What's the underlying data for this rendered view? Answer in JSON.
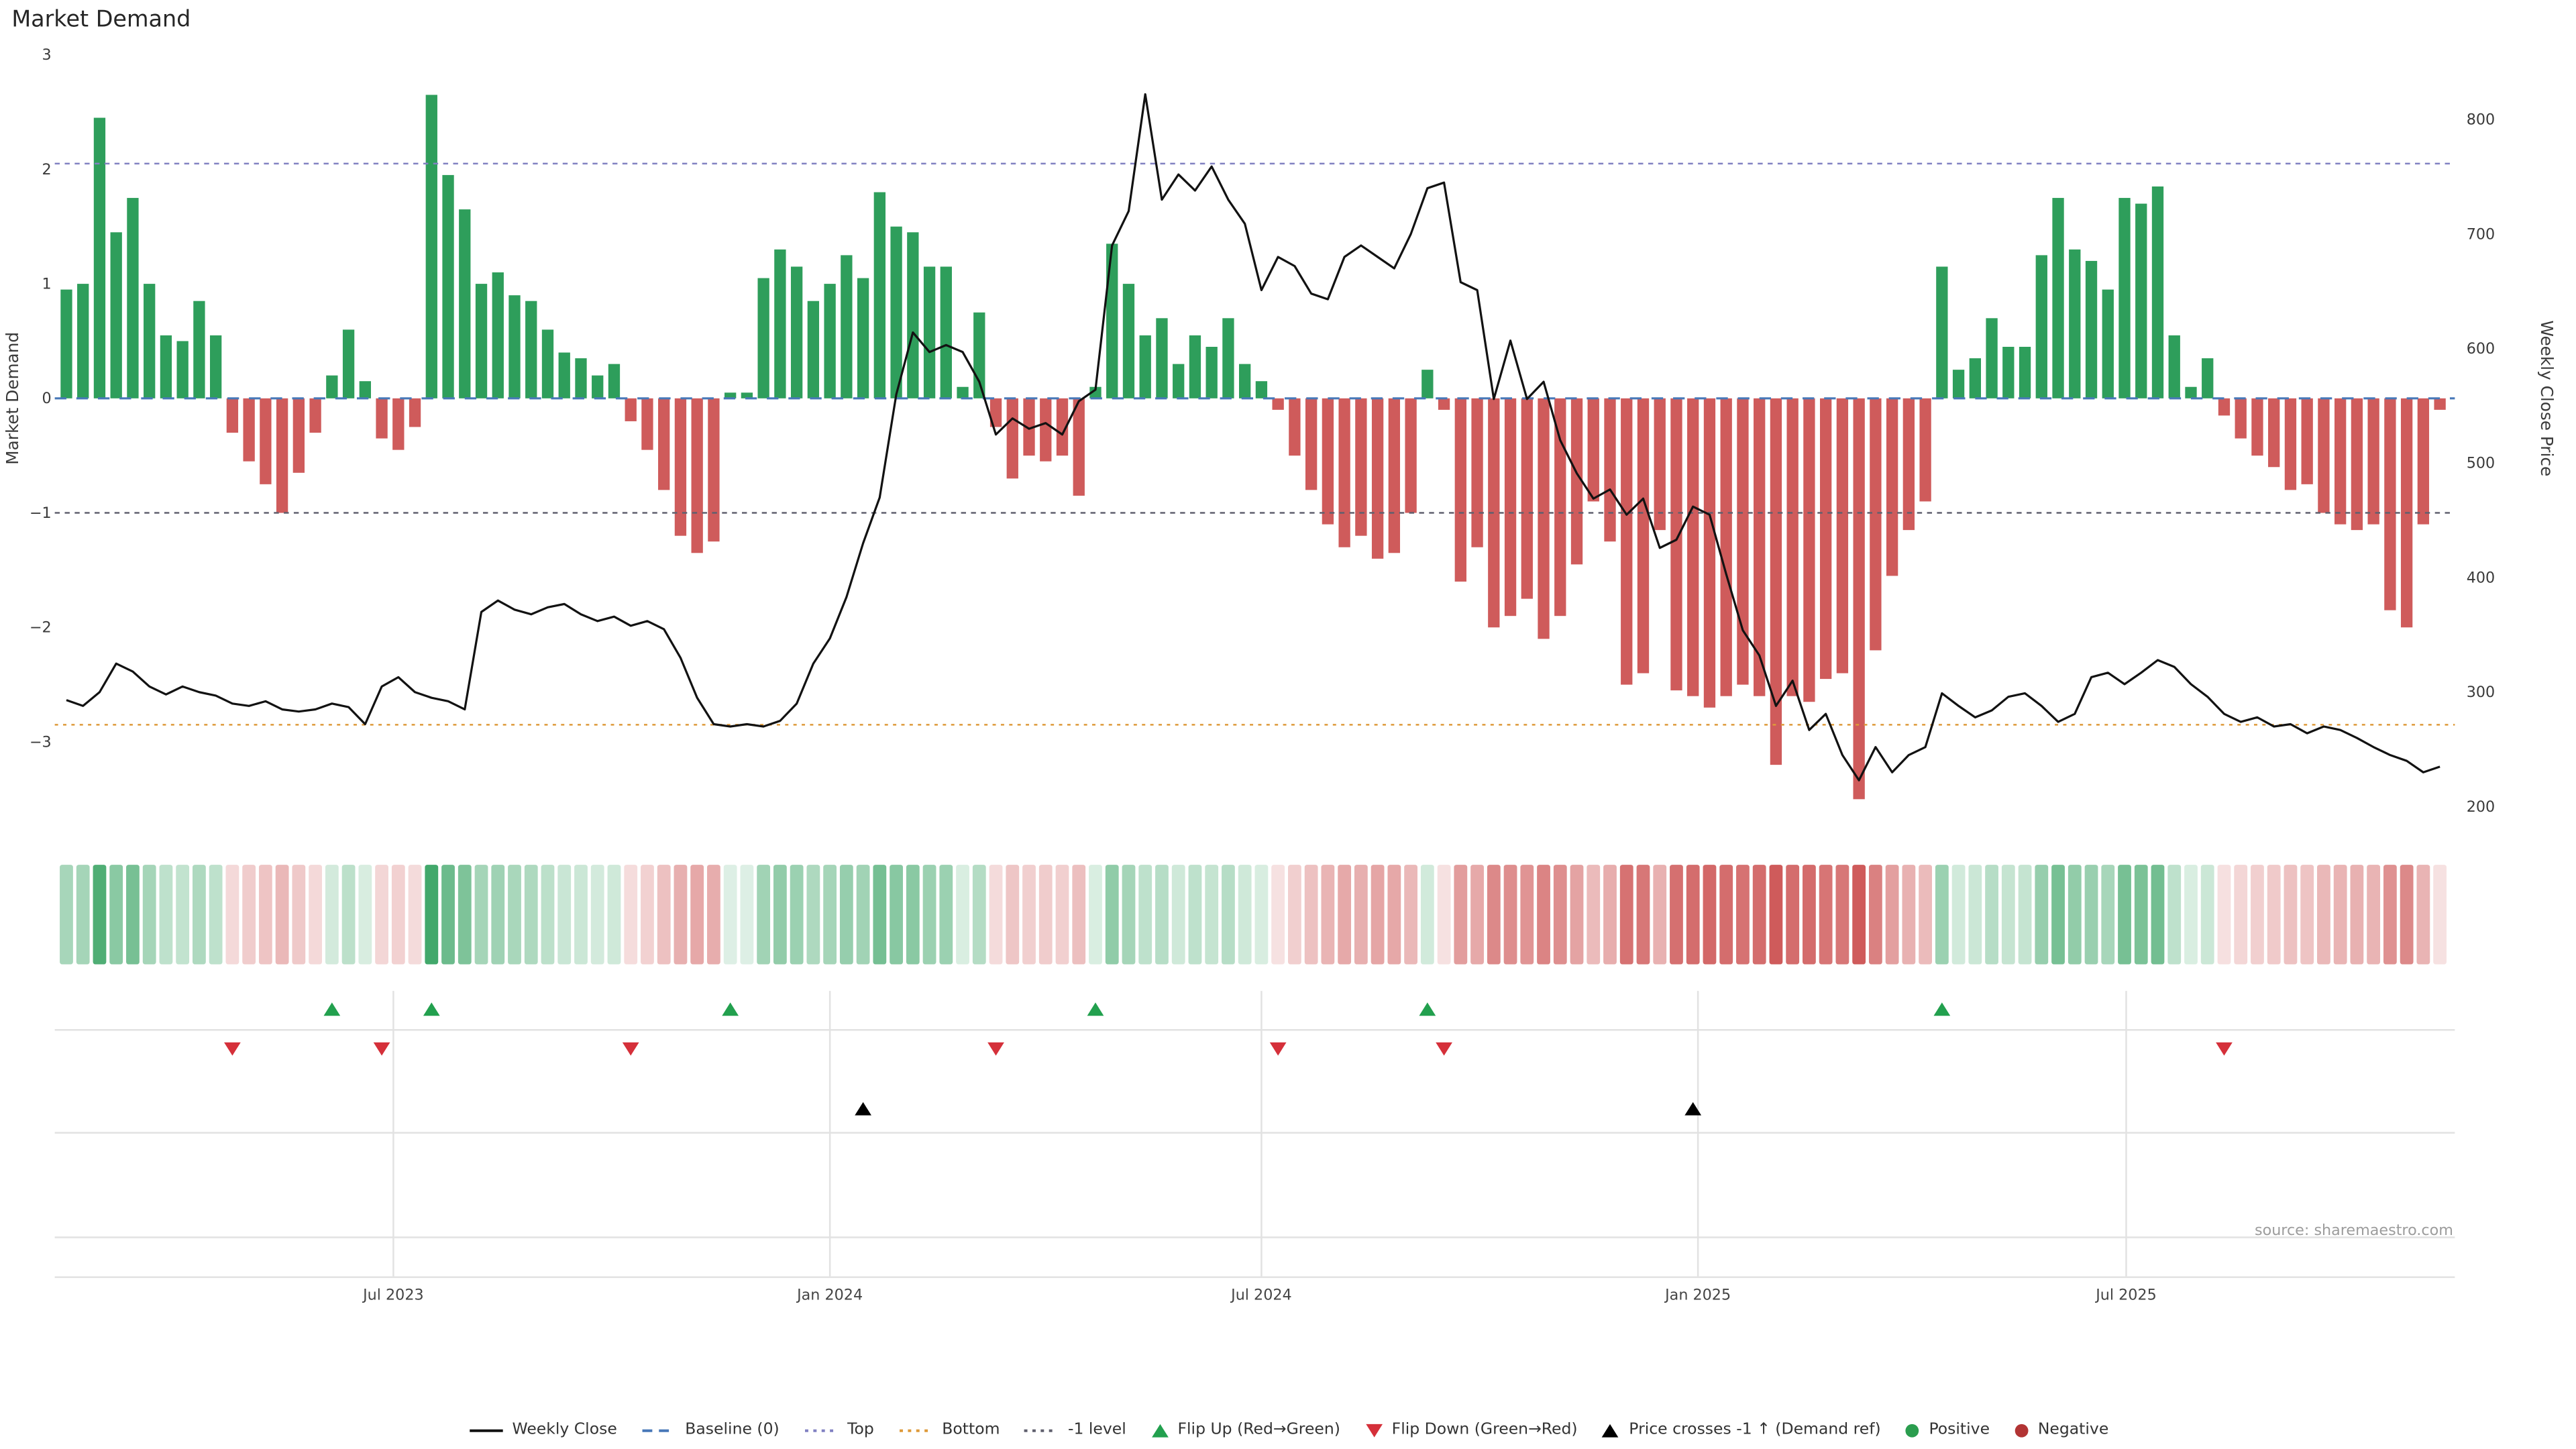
{
  "title": "Market Demand",
  "source": "source: sharemaestro.com",
  "axes": {
    "left_label": "Market Demand",
    "right_label": "Weekly Close Price",
    "left_ticks": [
      3,
      2,
      1,
      0,
      -1,
      -2,
      -3
    ],
    "right_ticks": [
      800,
      700,
      600,
      500,
      400,
      300,
      200
    ],
    "x_ticks": [
      {
        "label": "Jul 2023",
        "week": 19.7
      },
      {
        "label": "Jan 2024",
        "week": 46.0
      },
      {
        "label": "Jul 2024",
        "week": 72.0
      },
      {
        "label": "Jan 2025",
        "week": 98.3
      },
      {
        "label": "Jul 2025",
        "week": 124.1
      }
    ]
  },
  "colors": {
    "positive": "#2e9e5b",
    "negative": "#cf5b5b",
    "price_line": "#121212",
    "baseline": "#4878b8",
    "top_line": "#8181c2",
    "bottom_line": "#de9a3a",
    "minus_one_line": "#60606e",
    "flip_up": "#22a04e",
    "flip_down": "#d5303a",
    "price_cross": "#000000",
    "grid": "#e2e2e2"
  },
  "legend": [
    {
      "name": "weekly-close",
      "label": "Weekly Close",
      "icon": "line",
      "color": "#121212"
    },
    {
      "name": "baseline",
      "label": "Baseline (0)",
      "icon": "dash",
      "color": "#4878b8"
    },
    {
      "name": "top",
      "label": "Top",
      "icon": "dot",
      "color": "#8181c2"
    },
    {
      "name": "bottom",
      "label": "Bottom",
      "icon": "dot",
      "color": "#de9a3a"
    },
    {
      "name": "minus-1-level",
      "label": "-1 level",
      "icon": "dot",
      "color": "#60606e"
    },
    {
      "name": "flip-up",
      "label": "Flip Up (Red→Green)",
      "icon": "tri-up",
      "color": "#22a04e"
    },
    {
      "name": "flip-down",
      "label": "Flip Down (Green→Red)",
      "icon": "tri-down",
      "color": "#d5303a"
    },
    {
      "name": "price-crosses-minus-1",
      "label": "Price crosses -1 ↑ (Demand ref)",
      "icon": "tri-up",
      "color": "#000000"
    },
    {
      "name": "positive",
      "label": "Positive",
      "icon": "circle",
      "color": "#2a9d4e"
    },
    {
      "name": "negative",
      "label": "Negative",
      "icon": "circle",
      "color": "#b23434"
    }
  ],
  "chart_data": {
    "type": "combo",
    "subtypes": [
      "bar",
      "line",
      "heatmap-strip",
      "event-markers"
    ],
    "title": "Market Demand",
    "x_start": "2023-02-13",
    "x_interval_days": 7,
    "n_points": 144,
    "left_axis": {
      "label": "Market Demand",
      "ticks": [
        3,
        2,
        1,
        0,
        -1,
        -2,
        -3
      ],
      "lim": [
        -3.6,
        3.05
      ]
    },
    "right_axis": {
      "label": "Weekly Close Price",
      "ticks": [
        800,
        700,
        600,
        500,
        400,
        300,
        200
      ],
      "lim": [
        195,
        830
      ]
    },
    "reference_lines": {
      "baseline": 0,
      "top": 2.05,
      "bottom": -2.85,
      "minus_one": -1
    },
    "grid": false,
    "legend_position": "bottom-center",
    "series": [
      {
        "name": "Market Demand",
        "type": "bar",
        "axis": "left",
        "values": [
          0.95,
          1.0,
          2.45,
          1.45,
          1.75,
          1.0,
          0.55,
          0.5,
          0.85,
          0.55,
          -0.3,
          -0.55,
          -0.75,
          -1.0,
          -0.65,
          -0.3,
          0.2,
          0.6,
          0.15,
          -0.35,
          -0.45,
          -0.25,
          2.65,
          1.95,
          1.65,
          1.0,
          1.1,
          0.9,
          0.85,
          0.6,
          0.4,
          0.35,
          0.2,
          0.3,
          -0.2,
          -0.45,
          -0.8,
          -1.2,
          -1.35,
          -1.25,
          0.05,
          0.05,
          1.05,
          1.3,
          1.15,
          0.85,
          1.0,
          1.25,
          1.05,
          1.8,
          1.5,
          1.45,
          1.15,
          1.15,
          0.1,
          0.75,
          -0.25,
          -0.7,
          -0.5,
          -0.55,
          -0.5,
          -0.85,
          0.1,
          1.35,
          1.0,
          0.55,
          0.7,
          0.3,
          0.55,
          0.45,
          0.7,
          0.3,
          0.15,
          -0.1,
          -0.5,
          -0.8,
          -1.1,
          -1.3,
          -1.2,
          -1.4,
          -1.35,
          -1.0,
          0.25,
          -0.1,
          -1.6,
          -1.3,
          -2.0,
          -1.9,
          -1.75,
          -2.1,
          -1.9,
          -1.45,
          -0.9,
          -1.25,
          -2.5,
          -2.4,
          -1.15,
          -2.55,
          -2.6,
          -2.7,
          -2.6,
          -2.5,
          -2.6,
          -3.2,
          -2.6,
          -2.65,
          -2.45,
          -2.4,
          -3.5,
          -2.2,
          -1.55,
          -1.15,
          -0.9,
          1.15,
          0.25,
          0.35,
          0.7,
          0.45,
          0.45,
          1.25,
          1.75,
          1.3,
          1.2,
          0.95,
          1.75,
          1.7,
          1.85,
          0.55,
          0.1,
          0.35,
          -0.15,
          -0.35,
          -0.5,
          -0.6,
          -0.8,
          -0.75,
          -1.0,
          -1.1,
          -1.15,
          -1.1,
          -1.85,
          -2.0,
          -1.1,
          -0.1
        ]
      },
      {
        "name": "Weekly Close",
        "type": "line",
        "axis": "right",
        "values": [
          293,
          288,
          300,
          325,
          318,
          305,
          298,
          305,
          300,
          297,
          290,
          288,
          292,
          285,
          283,
          285,
          290,
          287,
          272,
          305,
          313,
          300,
          295,
          292,
          285,
          370,
          380,
          372,
          368,
          374,
          377,
          368,
          362,
          366,
          358,
          362,
          355,
          330,
          295,
          272,
          270,
          272,
          270,
          275,
          290,
          325,
          347,
          383,
          430,
          470,
          560,
          614,
          597,
          603,
          597,
          571,
          525,
          539,
          530,
          535,
          525,
          554,
          564,
          690,
          720,
          822,
          730,
          752,
          738,
          759,
          730,
          709,
          651,
          680,
          672,
          648,
          643,
          680,
          690,
          680,
          670,
          700,
          740,
          745,
          658,
          651,
          556,
          607,
          556,
          571,
          520,
          491,
          469,
          477,
          455,
          469,
          426,
          433,
          462,
          455,
          403,
          354,
          332,
          288,
          310,
          267,
          281,
          245,
          223,
          252,
          230,
          245,
          252,
          299,
          288,
          278,
          284,
          296,
          299,
          288,
          274,
          281,
          313,
          317,
          307,
          317,
          328,
          322,
          307,
          296,
          281,
          274,
          278,
          270,
          272,
          264,
          270,
          267,
          260,
          252,
          245,
          240,
          230,
          235
        ]
      }
    ],
    "heatmap": {
      "description": "weekly strip colored by demand sign (green positive / red negative), intensity proportional to |demand|",
      "source_series": "Market Demand"
    },
    "markers": {
      "flip_up_weeks": [
        16,
        22,
        40,
        62,
        82,
        113
      ],
      "flip_down_weeks": [
        10,
        19,
        34,
        56,
        73,
        83,
        130
      ],
      "price_cross_minus1_weeks": [
        48,
        98
      ]
    }
  }
}
